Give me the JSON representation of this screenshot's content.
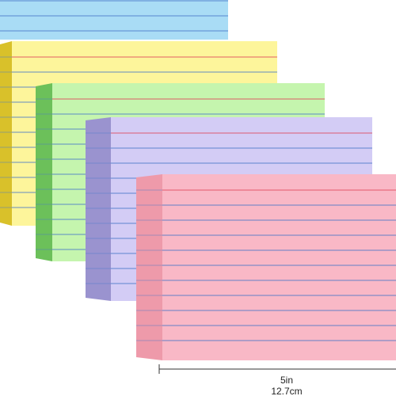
{
  "dimension": {
    "inches": "5in",
    "centimeters": "12.7cm"
  }
}
